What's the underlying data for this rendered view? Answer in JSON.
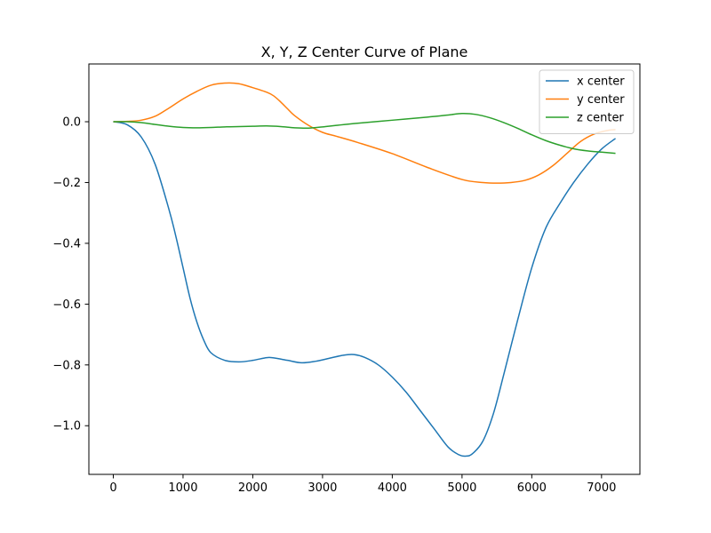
{
  "chart_data": {
    "type": "line",
    "title": "X, Y, Z Center Curve of Plane",
    "xlabel": "",
    "ylabel": "",
    "xlim": [
      -350,
      7550
    ],
    "ylim": [
      -1.16,
      0.19
    ],
    "x_ticks": [
      0,
      1000,
      2000,
      3000,
      4000,
      5000,
      6000,
      7000
    ],
    "x_tick_labels": [
      "0",
      "1000",
      "2000",
      "3000",
      "4000",
      "5000",
      "6000",
      "7000"
    ],
    "y_ticks": [
      0.0,
      -0.2,
      -0.4,
      -0.6,
      -0.8,
      -1.0
    ],
    "y_tick_labels": [
      "0.0",
      "−0.2",
      "−0.4",
      "−0.6",
      "−0.8",
      "−1.0"
    ],
    "grid": false,
    "legend_position": "top-right",
    "series": [
      {
        "name": "x center",
        "color": "#1f77b4",
        "x": [
          0,
          200,
          400,
          600,
          800,
          900,
          1000,
          1100,
          1200,
          1300,
          1400,
          1600,
          1800,
          2000,
          2200,
          2300,
          2500,
          2700,
          2900,
          3100,
          3300,
          3450,
          3600,
          3800,
          4000,
          4200,
          4400,
          4600,
          4800,
          4950,
          5050,
          5150,
          5300,
          5450,
          5600,
          5800,
          6000,
          6200,
          6400,
          6600,
          6800,
          7000,
          7200
        ],
        "y": [
          0.0,
          -0.01,
          -0.05,
          -0.14,
          -0.29,
          -0.38,
          -0.48,
          -0.58,
          -0.66,
          -0.72,
          -0.76,
          -0.785,
          -0.79,
          -0.785,
          -0.776,
          -0.777,
          -0.785,
          -0.793,
          -0.788,
          -0.778,
          -0.768,
          -0.766,
          -0.775,
          -0.8,
          -0.84,
          -0.89,
          -0.95,
          -1.01,
          -1.07,
          -1.095,
          -1.1,
          -1.092,
          -1.05,
          -0.96,
          -0.83,
          -0.65,
          -0.48,
          -0.35,
          -0.27,
          -0.2,
          -0.14,
          -0.09,
          -0.055
        ]
      },
      {
        "name": "y center",
        "color": "#ff7f0e",
        "x": [
          0,
          200,
          400,
          600,
          800,
          1000,
          1200,
          1400,
          1600,
          1800,
          2000,
          2200,
          2300,
          2400,
          2500,
          2600,
          2800,
          3000,
          3200,
          3500,
          4000,
          4500,
          5000,
          5300,
          5500,
          5700,
          5900,
          6100,
          6300,
          6500,
          6700,
          6900,
          7100,
          7200
        ],
        "y": [
          0.0,
          0.001,
          0.005,
          0.018,
          0.045,
          0.075,
          0.1,
          0.12,
          0.127,
          0.125,
          0.112,
          0.097,
          0.085,
          0.065,
          0.042,
          0.02,
          -0.012,
          -0.035,
          -0.048,
          -0.068,
          -0.105,
          -0.15,
          -0.19,
          -0.2,
          -0.202,
          -0.2,
          -0.193,
          -0.175,
          -0.145,
          -0.105,
          -0.065,
          -0.04,
          -0.028,
          -0.026
        ]
      },
      {
        "name": "z center",
        "color": "#2ca02c",
        "x": [
          0,
          200,
          400,
          600,
          800,
          1000,
          1200,
          1400,
          1600,
          1800,
          2000,
          2200,
          2400,
          2600,
          2800,
          3000,
          3200,
          3500,
          4000,
          4500,
          4800,
          5000,
          5200,
          5400,
          5600,
          5800,
          6000,
          6200,
          6400,
          6600,
          6800,
          7000,
          7200
        ],
        "y": [
          0.0,
          0.0,
          -0.003,
          -0.009,
          -0.015,
          -0.019,
          -0.02,
          -0.019,
          -0.017,
          -0.016,
          -0.015,
          -0.014,
          -0.016,
          -0.02,
          -0.021,
          -0.017,
          -0.012,
          -0.005,
          0.005,
          0.015,
          0.022,
          0.027,
          0.024,
          0.013,
          -0.003,
          -0.022,
          -0.043,
          -0.062,
          -0.077,
          -0.089,
          -0.096,
          -0.1,
          -0.104
        ]
      }
    ]
  }
}
